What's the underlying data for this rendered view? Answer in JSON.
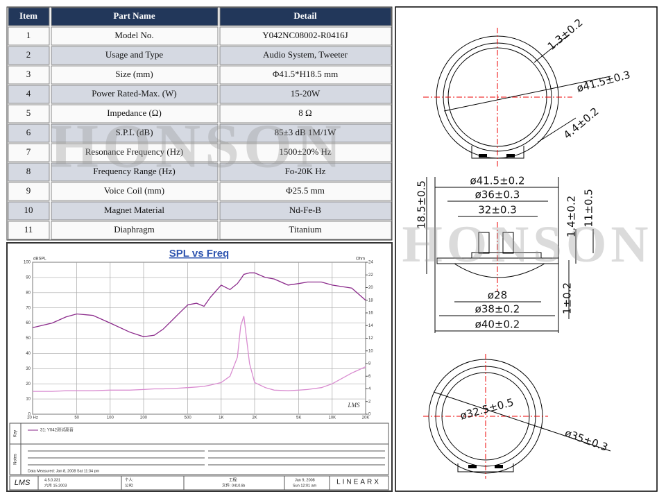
{
  "watermark": "HONSON",
  "table": {
    "header": [
      "Item",
      "Part Name",
      "Detail"
    ],
    "rows": [
      [
        "1",
        "Model No.",
        "Y042NC08002-R0416J"
      ],
      [
        "2",
        "Usage and Type",
        "Audio System, Tweeter"
      ],
      [
        "3",
        "Size (mm)",
        "Φ41.5*H18.5 mm"
      ],
      [
        "4",
        "Power Rated-Max. (W)",
        "15-20W"
      ],
      [
        "5",
        "Impedance (Ω)",
        "8 Ω"
      ],
      [
        "6",
        "S.P.L (dB)",
        "85±3 dB   1M/1W"
      ],
      [
        "7",
        "Resonance Frequency (Hz)",
        "1500±20% Hz"
      ],
      [
        "8",
        "Frequency Range (Hz)",
        "Fo-20K Hz"
      ],
      [
        "9",
        "Voice Coil (mm)",
        "Φ25.5 mm"
      ],
      [
        "10",
        "Magnet Material",
        "Nd-Fe-B"
      ],
      [
        "11",
        "Diaphragm",
        "Titanium"
      ]
    ]
  },
  "chart_data": {
    "type": "line",
    "title": "SPL vs Freq",
    "y_label": "dBSPL",
    "y2_label": "Ohm",
    "xscale": "log",
    "grid": true,
    "xlim": [
      20,
      20000
    ],
    "xticks": [
      {
        "value": 20,
        "label": "20 Hz"
      },
      50,
      100,
      200,
      500,
      {
        "value": 1000,
        "label": "1K"
      },
      {
        "value": 2000,
        "label": "2K"
      },
      {
        "value": 5000,
        "label": "5K"
      },
      {
        "value": 10000,
        "label": "10K"
      },
      {
        "value": 20000,
        "label": "20K"
      }
    ],
    "ylim": [
      0,
      100
    ],
    "yticks": [
      0,
      10,
      20,
      30,
      40,
      50,
      60,
      70,
      80,
      90,
      100
    ],
    "y2lim": [
      0,
      24
    ],
    "y2ticks": [
      0,
      2,
      4,
      6,
      8,
      10,
      12,
      14,
      16,
      18,
      20,
      22,
      24
    ],
    "x": [
      20,
      30,
      40,
      50,
      70,
      100,
      150,
      200,
      250,
      300,
      400,
      500,
      600,
      700,
      800,
      1000,
      1200,
      1400,
      1500,
      1600,
      1800,
      2000,
      2500,
      3000,
      4000,
      5000,
      6000,
      8000,
      10000,
      15000,
      20000
    ],
    "series": [
      {
        "name": "31: Y042测试高音",
        "color": "#8b2a8b",
        "values": [
          57,
          60,
          64,
          66,
          65,
          60,
          54,
          51,
          52,
          56,
          65,
          72,
          73,
          71,
          77,
          85,
          82,
          86,
          89,
          92,
          93,
          93,
          90,
          89,
          85,
          86,
          87,
          87,
          85,
          83,
          75
        ]
      },
      {
        "color": "#d98cd0",
        "axis": "y2",
        "values": [
          3.6,
          3.6,
          3.7,
          3.7,
          3.7,
          3.8,
          3.8,
          3.9,
          4,
          4,
          4.1,
          4.2,
          4.3,
          4.4,
          4.6,
          5,
          6,
          9,
          14,
          15.5,
          8,
          5,
          4.2,
          3.8,
          3.7,
          3.8,
          3.9,
          4.2,
          4.8,
          6.5,
          7.5
        ]
      }
    ],
    "logo": "LMS"
  },
  "chart_footer": {
    "measured": "Data Measured: Jan 8, 2008  Sat 11:34 pm",
    "key": "Key",
    "notes": "Notes",
    "logo": "LMS",
    "version": "4.5.0.331",
    "version_date": "六月 15.2003",
    "person": "个人:",
    "company": "公司:",
    "project": "工程:",
    "file": "文件: 0410.lib",
    "date": "Jan 9, 2008",
    "time": "Sun 12:01 am",
    "brand": "LINEARX"
  },
  "drawing": {
    "labels": [
      "1.3±0.2",
      "ø41.5±0.3",
      "4.4±0.2",
      "ø41.5±0.2",
      "ø36±0.3",
      "32±0.3",
      "18.5±0.5",
      "1.4±0.2",
      "11±0.5",
      "ø28",
      "ø38±0.2",
      "ø40±0.2",
      "1±0.2",
      "ø32.5±0.5",
      "ø35±0.3"
    ]
  }
}
